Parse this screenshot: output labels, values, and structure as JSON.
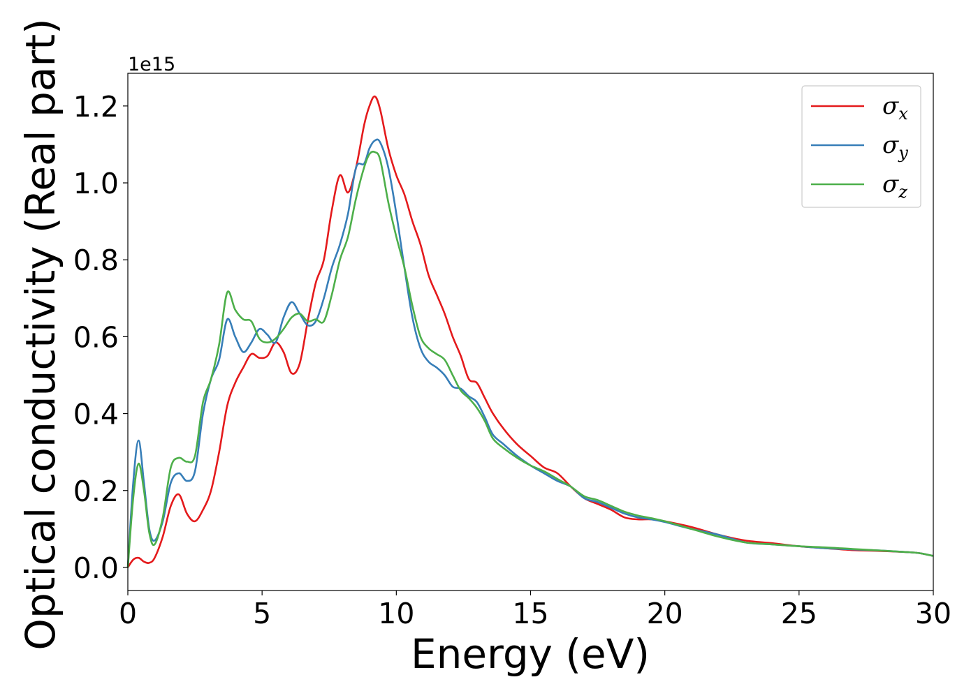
{
  "chart_data": {
    "type": "line",
    "title": "",
    "xlabel": "Energy (eV)",
    "ylabel": "Optical conductivity (Real part)",
    "y_offset_label": "1e15",
    "xlim": [
      0,
      30
    ],
    "ylim": [
      -0.06,
      1.285
    ],
    "xticks": [
      0,
      5,
      10,
      15,
      20,
      25,
      30
    ],
    "xtick_labels": [
      "0",
      "5",
      "10",
      "15",
      "20",
      "25",
      "30"
    ],
    "yticks": [
      0.0,
      0.2,
      0.4,
      0.6,
      0.8,
      1.0,
      1.2
    ],
    "ytick_labels": [
      "0.0",
      "0.2",
      "0.4",
      "0.6",
      "0.8",
      "1.0",
      "1.2"
    ],
    "grid": false,
    "legend_position": "top-right",
    "series": [
      {
        "name": "σ",
        "subscript": "x",
        "color": "#e41a1c",
        "x": [
          0,
          0.2,
          0.4,
          0.6,
          0.8,
          1.0,
          1.3,
          1.6,
          1.9,
          2.2,
          2.5,
          2.8,
          3.1,
          3.4,
          3.7,
          4.0,
          4.3,
          4.6,
          4.9,
          5.2,
          5.5,
          5.8,
          6.1,
          6.4,
          6.7,
          7.0,
          7.3,
          7.6,
          7.9,
          8.2,
          8.5,
          8.8,
          9.0,
          9.2,
          9.4,
          9.7,
          10.0,
          10.3,
          10.6,
          10.9,
          11.2,
          11.5,
          11.8,
          12.1,
          12.4,
          12.7,
          13.0,
          13.3,
          13.6,
          14.0,
          14.5,
          15.0,
          15.5,
          16.0,
          16.5,
          17.0,
          17.5,
          18.0,
          18.5,
          19.0,
          19.5,
          20.0,
          21.0,
          22.0,
          23.0,
          24.0,
          25.0,
          26.0,
          27.0,
          28.0,
          29.0,
          29.5,
          30.0
        ],
        "values": [
          0.0,
          0.02,
          0.025,
          0.015,
          0.012,
          0.025,
          0.08,
          0.16,
          0.19,
          0.14,
          0.12,
          0.15,
          0.2,
          0.3,
          0.42,
          0.48,
          0.52,
          0.555,
          0.545,
          0.55,
          0.585,
          0.56,
          0.505,
          0.53,
          0.64,
          0.74,
          0.8,
          0.93,
          1.02,
          0.975,
          1.04,
          1.15,
          1.2,
          1.225,
          1.19,
          1.09,
          1.02,
          0.97,
          0.9,
          0.84,
          0.76,
          0.71,
          0.66,
          0.6,
          0.55,
          0.49,
          0.48,
          0.44,
          0.4,
          0.36,
          0.32,
          0.29,
          0.26,
          0.245,
          0.21,
          0.18,
          0.165,
          0.15,
          0.13,
          0.125,
          0.125,
          0.12,
          0.105,
          0.085,
          0.07,
          0.063,
          0.055,
          0.05,
          0.045,
          0.043,
          0.04,
          0.037,
          0.03
        ]
      },
      {
        "name": "σ",
        "subscript": "y",
        "color": "#377eb8",
        "x": [
          0,
          0.2,
          0.4,
          0.6,
          0.8,
          1.0,
          1.3,
          1.6,
          1.9,
          2.2,
          2.5,
          2.8,
          3.1,
          3.4,
          3.7,
          4.0,
          4.3,
          4.6,
          4.9,
          5.2,
          5.5,
          5.8,
          6.1,
          6.4,
          6.7,
          7.0,
          7.3,
          7.6,
          7.9,
          8.2,
          8.5,
          8.8,
          9.0,
          9.2,
          9.4,
          9.7,
          10.0,
          10.3,
          10.6,
          10.9,
          11.2,
          11.5,
          11.8,
          12.1,
          12.4,
          12.7,
          13.0,
          13.3,
          13.6,
          14.0,
          14.5,
          15.0,
          15.5,
          16.0,
          16.5,
          17.0,
          17.5,
          18.0,
          18.5,
          19.0,
          19.5,
          20.0,
          21.0,
          22.0,
          23.0,
          24.0,
          25.0,
          26.0,
          27.0,
          28.0,
          29.0,
          29.5,
          30.0
        ],
        "values": [
          0.0,
          0.22,
          0.33,
          0.22,
          0.1,
          0.07,
          0.12,
          0.22,
          0.245,
          0.225,
          0.25,
          0.4,
          0.49,
          0.54,
          0.645,
          0.6,
          0.56,
          0.585,
          0.62,
          0.605,
          0.585,
          0.65,
          0.69,
          0.66,
          0.63,
          0.64,
          0.7,
          0.78,
          0.84,
          0.92,
          1.04,
          1.05,
          1.09,
          1.11,
          1.105,
          1.04,
          0.92,
          0.78,
          0.65,
          0.57,
          0.535,
          0.52,
          0.5,
          0.47,
          0.465,
          0.445,
          0.43,
          0.39,
          0.345,
          0.32,
          0.29,
          0.265,
          0.245,
          0.225,
          0.21,
          0.18,
          0.17,
          0.155,
          0.14,
          0.13,
          0.125,
          0.118,
          0.1,
          0.085,
          0.065,
          0.06,
          0.055,
          0.05,
          0.047,
          0.044,
          0.04,
          0.037,
          0.03
        ]
      },
      {
        "name": "σ",
        "subscript": "z",
        "color": "#4daf4a",
        "x": [
          0,
          0.2,
          0.4,
          0.6,
          0.8,
          1.0,
          1.3,
          1.6,
          1.9,
          2.2,
          2.5,
          2.8,
          3.1,
          3.4,
          3.7,
          4.0,
          4.3,
          4.6,
          4.9,
          5.2,
          5.5,
          5.8,
          6.1,
          6.4,
          6.7,
          7.0,
          7.3,
          7.6,
          7.9,
          8.2,
          8.5,
          8.8,
          9.0,
          9.2,
          9.4,
          9.7,
          10.0,
          10.3,
          10.6,
          10.9,
          11.2,
          11.5,
          11.8,
          12.1,
          12.4,
          12.7,
          13.0,
          13.3,
          13.6,
          14.0,
          14.5,
          15.0,
          15.5,
          16.0,
          16.5,
          17.0,
          17.5,
          18.0,
          18.5,
          19.0,
          19.5,
          20.0,
          21.0,
          22.0,
          23.0,
          24.0,
          25.0,
          26.0,
          27.0,
          28.0,
          29.0,
          29.5,
          30.0
        ],
        "values": [
          0.0,
          0.18,
          0.27,
          0.2,
          0.09,
          0.06,
          0.13,
          0.26,
          0.285,
          0.275,
          0.29,
          0.43,
          0.49,
          0.58,
          0.715,
          0.67,
          0.645,
          0.64,
          0.595,
          0.585,
          0.595,
          0.62,
          0.65,
          0.66,
          0.64,
          0.645,
          0.64,
          0.71,
          0.8,
          0.86,
          0.96,
          1.04,
          1.075,
          1.08,
          1.06,
          0.95,
          0.86,
          0.78,
          0.68,
          0.6,
          0.57,
          0.555,
          0.54,
          0.5,
          0.46,
          0.44,
          0.415,
          0.38,
          0.335,
          0.31,
          0.285,
          0.265,
          0.25,
          0.23,
          0.21,
          0.185,
          0.175,
          0.16,
          0.145,
          0.135,
          0.128,
          0.12,
          0.1,
          0.08,
          0.065,
          0.06,
          0.055,
          0.052,
          0.048,
          0.044,
          0.04,
          0.037,
          0.03
        ]
      }
    ]
  }
}
